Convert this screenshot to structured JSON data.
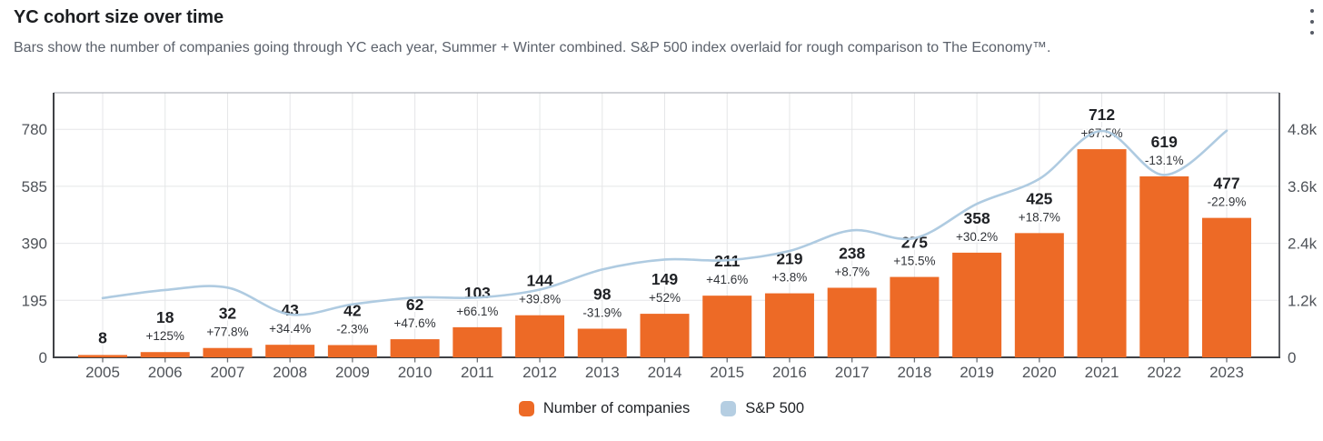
{
  "header": {
    "title": "YC cohort size over time",
    "subtitle": "Bars show the number of companies going through YC each year, Summer + Winter combined. S&P 500 index overlaid for rough comparison to The Economy™.",
    "menu_icon": "kebab-menu-icon"
  },
  "legend": [
    {
      "label": "Number of companies",
      "color": "#ED6A26"
    },
    {
      "label": "S&P 500",
      "color": "#B5CEE2"
    }
  ],
  "colors": {
    "bar": "#ED6A26",
    "line": "#AFCBE1",
    "grid": "#e5e6e8",
    "border_dark": "#3f4145",
    "border_light": "#b3b7bd",
    "axis_text": "#4f5359",
    "value_text": "#1f2125",
    "pct_text": "#303338"
  },
  "chart_data": {
    "type": "bar",
    "title": "YC cohort size over time",
    "subtitle": "Bars show the number of companies going through YC each year, Summer + Winter combined. S&P 500 index overlaid for rough comparison to The Economy™.",
    "categories": [
      "2005",
      "2006",
      "2007",
      "2008",
      "2009",
      "2010",
      "2011",
      "2012",
      "2013",
      "2014",
      "2015",
      "2016",
      "2017",
      "2018",
      "2019",
      "2020",
      "2021",
      "2022",
      "2023"
    ],
    "series": [
      {
        "name": "Number of companies",
        "type": "bar",
        "axis": "left",
        "values": [
          8,
          18,
          32,
          43,
          42,
          62,
          103,
          144,
          98,
          149,
          211,
          219,
          238,
          275,
          358,
          425,
          712,
          619,
          477
        ],
        "pct_change": [
          null,
          "+125%",
          "+77.8%",
          "+34.4%",
          "-2.3%",
          "+47.6%",
          "+66.1%",
          "+39.8%",
          "-31.9%",
          "+52%",
          "+41.6%",
          "+3.8%",
          "+8.7%",
          "+15.5%",
          "+30.2%",
          "+18.7%",
          "+67.5%",
          "-13.1%",
          "-22.9%"
        ]
      },
      {
        "name": "S&P 500",
        "type": "line",
        "axis": "right",
        "values": [
          1248,
          1418,
          1468,
          903,
          1115,
          1258,
          1258,
          1426,
          1848,
          2059,
          2044,
          2239,
          2674,
          2507,
          3231,
          3756,
          4766,
          3840,
          4770
        ]
      }
    ],
    "left_axis": {
      "ticks": [
        0,
        195,
        390,
        585,
        780
      ],
      "label_format": "plain"
    },
    "right_axis": {
      "ticks": [
        "0",
        "1.2k",
        "2.4k",
        "3.6k",
        "4.8k"
      ],
      "tick_values": [
        0,
        1200,
        2400,
        3600,
        4800
      ]
    },
    "grid": true,
    "legend_position": "bottom"
  }
}
